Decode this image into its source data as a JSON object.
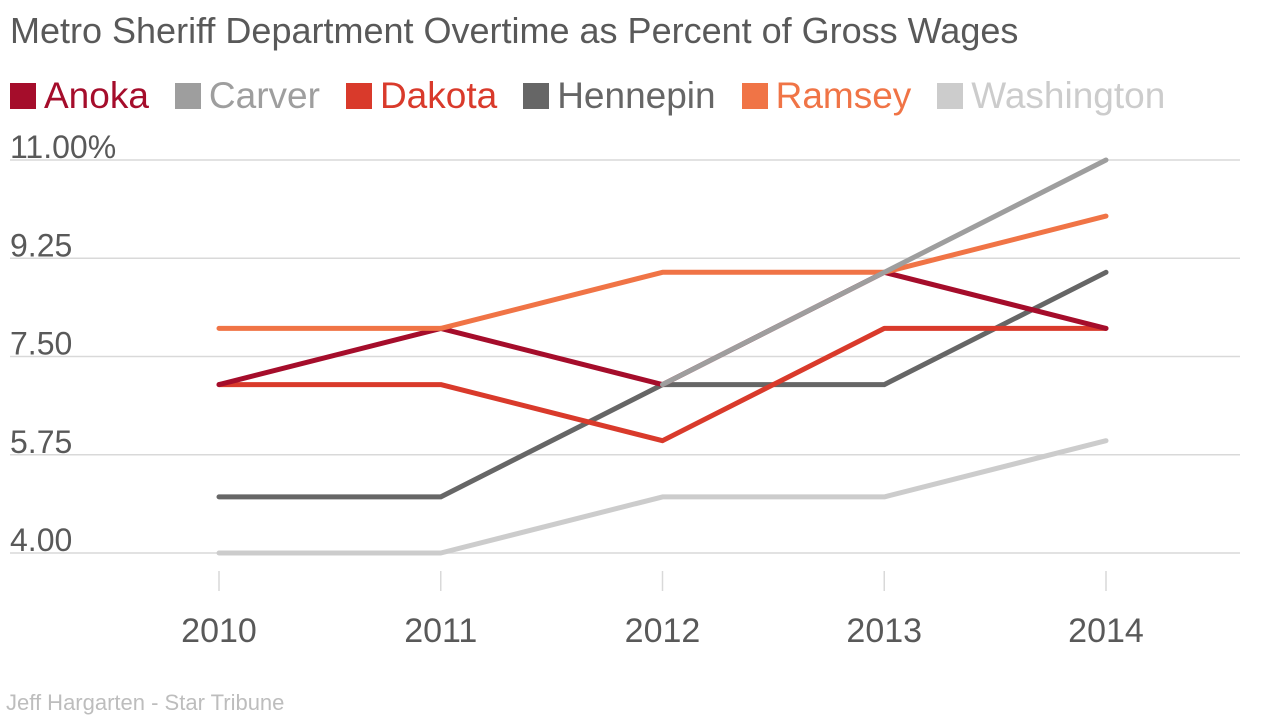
{
  "chart_data": {
    "type": "line",
    "title": "Metro Sheriff Department Overtime as Percent of Gross Wages",
    "xlabel": "",
    "ylabel": "",
    "x": [
      "2010",
      "2011",
      "2012",
      "2013",
      "2014"
    ],
    "ylim": [
      4.0,
      11.0
    ],
    "y_ticks": [
      4.0,
      5.75,
      7.5,
      9.25,
      11.0
    ],
    "y_tick_labels": [
      "4.00",
      "5.75",
      "7.50",
      "9.25",
      "11.00%"
    ],
    "grid": true,
    "legend_position": "top-left",
    "series": [
      {
        "name": "Anoka",
        "color": "#a50d2b",
        "values": [
          7.0,
          8.0,
          7.0,
          9.0,
          8.0
        ]
      },
      {
        "name": "Carver",
        "color": "#9e9e9e",
        "values": [
          null,
          null,
          7.0,
          9.0,
          11.0
        ]
      },
      {
        "name": "Dakota",
        "color": "#d93a2b",
        "values": [
          7.0,
          7.0,
          6.0,
          8.0,
          8.0
        ]
      },
      {
        "name": "Hennepin",
        "color": "#666666",
        "values": [
          5.0,
          5.0,
          7.0,
          7.0,
          9.0
        ]
      },
      {
        "name": "Ramsey",
        "color": "#f07446",
        "values": [
          8.0,
          8.0,
          9.0,
          9.0,
          10.0
        ]
      },
      {
        "name": "Washington",
        "color": "#cccccc",
        "values": [
          4.0,
          4.0,
          5.0,
          5.0,
          6.0
        ]
      }
    ]
  },
  "source": "Jeff Hargarten - Star Tribune"
}
